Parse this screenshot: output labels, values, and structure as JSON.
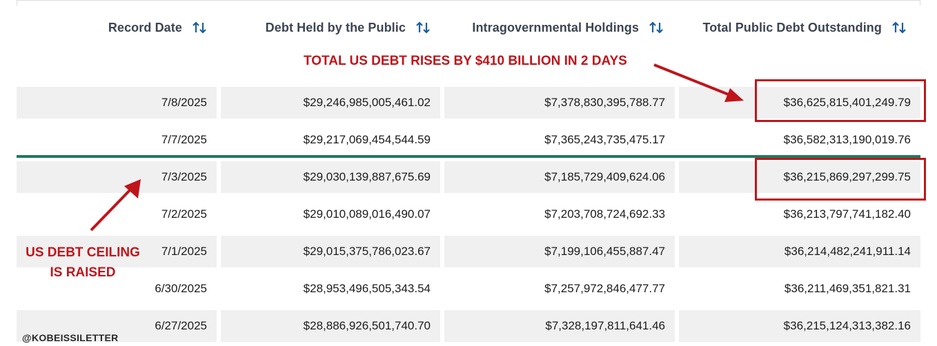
{
  "columns": [
    {
      "label": "Record Date"
    },
    {
      "label": "Debt Held by the Public"
    },
    {
      "label": "Intragovernmental Holdings"
    },
    {
      "label": "Total Public Debt Outstanding"
    }
  ],
  "rows": [
    {
      "date": "7/8/2025",
      "public": "$29,246,985,005,461.02",
      "intragov": "$7,378,830,395,788.77",
      "total": "$36,625,815,401,249.79"
    },
    {
      "date": "7/7/2025",
      "public": "$29,217,069,454,544.59",
      "intragov": "$7,365,243,735,475.17",
      "total": "$36,582,313,190,019.76"
    },
    {
      "date": "7/3/2025",
      "public": "$29,030,139,887,675.69",
      "intragov": "$7,185,729,409,624.06",
      "total": "$36,215,869,297,299.75"
    },
    {
      "date": "7/2/2025",
      "public": "$29,010,089,016,490.07",
      "intragov": "$7,203,708,724,692.33",
      "total": "$36,213,797,741,182.40"
    },
    {
      "date": "7/1/2025",
      "public": "$29,015,375,786,023.67",
      "intragov": "$7,199,106,455,887.47",
      "total": "$36,214,482,241,911.14"
    },
    {
      "date": "6/30/2025",
      "public": "$28,953,496,505,343.54",
      "intragov": "$7,257,972,846,477.77",
      "total": "$36,211,469,351,821.31"
    },
    {
      "date": "6/27/2025",
      "public": "$28,886,926,501,740.70",
      "intragov": "$7,328,197,811,641.46",
      "total": "$36,215,124,313,382.16"
    }
  ],
  "annotations": {
    "top": "TOTAL US DEBT RISES BY $410 BILLION IN 2 DAYS",
    "left_line1": "US DEBT CEILING",
    "left_line2": "IS RAISED"
  },
  "watermark": "@KOBEISSILETTER",
  "colors": {
    "annotation": "#c0141b",
    "divider": "#1f7a5c",
    "sort_icon": "#1a5e9e",
    "row_shade": "#f0f0f0"
  },
  "icons": {
    "sort": "sort-arrows-icon",
    "arrow": "red-arrow-icon"
  }
}
